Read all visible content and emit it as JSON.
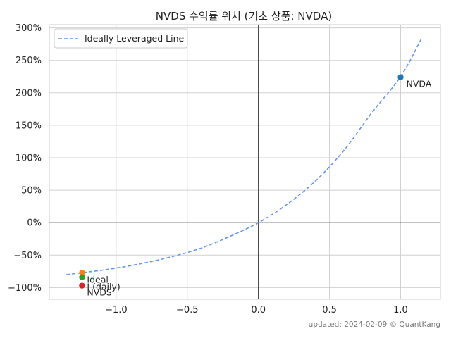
{
  "chart_data": {
    "type": "scatter",
    "title": "NVDS 수익률 위치 (기초 상품: NVDA)",
    "xlabel": "",
    "ylabel": "",
    "xlim": [
      -1.47,
      1.28
    ],
    "ylim": [
      -118,
      305
    ],
    "x_ticks": [
      -1.0,
      -0.5,
      0.0,
      0.5,
      1.0
    ],
    "x_tick_labels": [
      "−1.0",
      "−0.5",
      "0.0",
      "0.5",
      "1.0"
    ],
    "y_ticks": [
      -100,
      -50,
      0,
      50,
      100,
      150,
      200,
      250,
      300
    ],
    "y_tick_labels": [
      "−100%",
      "−50%",
      "0%",
      "50%",
      "100%",
      "150%",
      "200%",
      "250%",
      "300%"
    ],
    "grid": true,
    "legend": {
      "placement": "top-left",
      "entries": [
        "Ideally Leveraged Line"
      ]
    },
    "line": {
      "name": "Ideally Leveraged Line",
      "style": "dashed",
      "color": "#6495ED",
      "x": [
        -1.35,
        -1.2,
        -1.0,
        -0.8,
        -0.6,
        -0.4,
        -0.2,
        0.0,
        0.2,
        0.4,
        0.6,
        0.8,
        1.0,
        1.15
      ],
      "y": [
        -80,
        -76,
        -70,
        -62,
        -52,
        -39,
        -21,
        0,
        28,
        64,
        111,
        170,
        225,
        285
      ]
    },
    "points": [
      {
        "label": "NVDA",
        "x": 1.0,
        "y": 224,
        "color": "#1f77b4"
      },
      {
        "label": "",
        "x": -1.24,
        "y": -77,
        "color": "#ff7f0e"
      },
      {
        "label": "Ideal",
        "x": -1.24,
        "y": -84,
        "color": "#2ca02c"
      },
      {
        "label": "NVDS",
        "x": -1.24,
        "y": -97,
        "color": "#d62728"
      }
    ],
    "annotations": [
      "Ideal",
      "I (daily)",
      "NVDS",
      "NVDA"
    ]
  },
  "footer": "updated: 2024-02-09 © QuantKang"
}
